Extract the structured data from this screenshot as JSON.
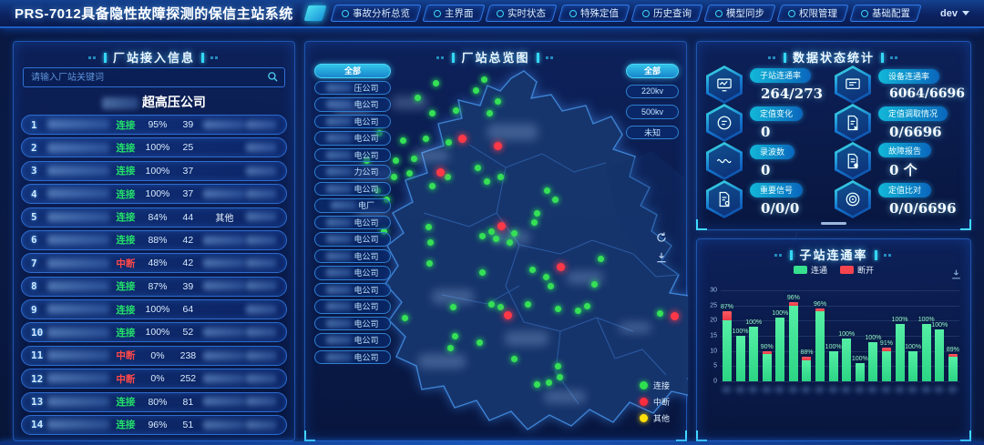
{
  "header": {
    "title": "PRS-7012具备隐性故障探测的保信主站系统",
    "tabs": [
      {
        "label": "事故分析总览",
        "icon": "home-icon"
      },
      {
        "label": "主界面",
        "icon": "home-icon"
      },
      {
        "label": "实时状态",
        "icon": "clock-icon"
      },
      {
        "label": "特殊定值",
        "icon": "gear-icon"
      },
      {
        "label": "历史查询",
        "icon": "search-icon"
      },
      {
        "label": "模型同步",
        "icon": "sync-icon"
      },
      {
        "label": "权限管理",
        "icon": "shield-icon"
      },
      {
        "label": "基础配置",
        "icon": "gear-icon"
      }
    ],
    "user": "dev"
  },
  "left_panel": {
    "title": "厂站接入信息",
    "search_placeholder": "请输入厂站关键词",
    "company_title_suffix": "超高压公司",
    "status_colors": {
      "connected": "#23e06b",
      "interrupted": "#ff4949"
    },
    "rows": [
      {
        "num": "1",
        "status": "连接",
        "pct": "95%",
        "count": "39",
        "extra": "",
        "mid_blur": true
      },
      {
        "num": "2",
        "status": "连接",
        "pct": "100%",
        "count": "25",
        "extra": "",
        "mid_blur": false
      },
      {
        "num": "3",
        "status": "连接",
        "pct": "100%",
        "count": "37",
        "extra": "",
        "mid_blur": false
      },
      {
        "num": "4",
        "status": "连接",
        "pct": "100%",
        "count": "37",
        "extra": "",
        "mid_blur": true
      },
      {
        "num": "5",
        "status": "连接",
        "pct": "84%",
        "count": "44",
        "extra": "其他",
        "mid_blur": false
      },
      {
        "num": "6",
        "status": "连接",
        "pct": "88%",
        "count": "42",
        "extra": "",
        "mid_blur": true
      },
      {
        "num": "7",
        "status": "中断",
        "pct": "48%",
        "count": "42",
        "extra": "",
        "mid_blur": true
      },
      {
        "num": "8",
        "status": "连接",
        "pct": "87%",
        "count": "39",
        "extra": "",
        "mid_blur": true
      },
      {
        "num": "9",
        "status": "连接",
        "pct": "100%",
        "count": "64",
        "extra": "",
        "mid_blur": false
      },
      {
        "num": "10",
        "status": "连接",
        "pct": "100%",
        "count": "52",
        "extra": "",
        "mid_blur": true
      },
      {
        "num": "11",
        "status": "中断",
        "pct": "0%",
        "count": "238",
        "extra": "",
        "mid_blur": true
      },
      {
        "num": "12",
        "status": "中断",
        "pct": "0%",
        "count": "252",
        "extra": "",
        "mid_blur": true
      },
      {
        "num": "13",
        "status": "连接",
        "pct": "80%",
        "count": "81",
        "extra": "",
        "mid_blur": true
      },
      {
        "num": "14",
        "status": "连接",
        "pct": "96%",
        "count": "51",
        "extra": "",
        "mid_blur": true
      }
    ]
  },
  "map_panel": {
    "title": "厂站总览图",
    "company_filters": [
      {
        "label": "全部",
        "active": true,
        "suffix": ""
      },
      {
        "label": "",
        "active": false,
        "suffix": "压公司"
      },
      {
        "label": "",
        "active": false,
        "suffix": "电公司"
      },
      {
        "label": "",
        "active": false,
        "suffix": "电公司"
      },
      {
        "label": "",
        "active": false,
        "suffix": "电公司"
      },
      {
        "label": "",
        "active": false,
        "suffix": "电公司"
      },
      {
        "label": "",
        "active": false,
        "suffix": "力公司"
      },
      {
        "label": "",
        "active": false,
        "suffix": "电公司"
      },
      {
        "label": "",
        "active": false,
        "suffix": "电厂"
      },
      {
        "label": "",
        "active": false,
        "suffix": "电公司"
      },
      {
        "label": "",
        "active": false,
        "suffix": "电公司"
      },
      {
        "label": "",
        "active": false,
        "suffix": "电公司"
      },
      {
        "label": "",
        "active": false,
        "suffix": "电公司"
      },
      {
        "label": "",
        "active": false,
        "suffix": "电公司"
      },
      {
        "label": "",
        "active": false,
        "suffix": "电公司"
      },
      {
        "label": "",
        "active": false,
        "suffix": "电公司"
      },
      {
        "label": "",
        "active": false,
        "suffix": "电公司"
      },
      {
        "label": "",
        "active": false,
        "suffix": "电公司"
      }
    ],
    "voltage_filters": [
      {
        "label": "全部",
        "active": true
      },
      {
        "label": "220kv",
        "active": false
      },
      {
        "label": "500kv",
        "active": false
      },
      {
        "label": "未知",
        "active": false
      }
    ],
    "legend": [
      {
        "label": "连接",
        "color": "#2ee04f"
      },
      {
        "label": "中断",
        "color": "#ff2e3e"
      },
      {
        "label": "其他",
        "color": "#ffe00a"
      }
    ],
    "dots": [
      [
        193,
        38,
        "g"
      ],
      [
        184,
        50,
        "g"
      ],
      [
        162,
        72,
        "g"
      ],
      [
        136,
        75,
        "g"
      ],
      [
        208,
        62,
        "g"
      ],
      [
        199,
        75,
        "g"
      ],
      [
        140,
        42,
        "g"
      ],
      [
        120,
        58,
        "g"
      ],
      [
        129,
        103,
        "g"
      ],
      [
        154,
        107,
        "g"
      ],
      [
        104,
        105,
        "g"
      ],
      [
        78,
        97,
        "g"
      ],
      [
        64,
        127,
        "g"
      ],
      [
        94,
        145,
        "g"
      ],
      [
        111,
        141,
        "g"
      ],
      [
        96,
        127,
        "g"
      ],
      [
        116,
        125,
        "g"
      ],
      [
        153,
        145,
        "g"
      ],
      [
        186,
        135,
        "g"
      ],
      [
        196,
        150,
        "g"
      ],
      [
        211,
        145,
        "g"
      ],
      [
        136,
        155,
        "g"
      ],
      [
        76,
        160,
        "g"
      ],
      [
        86,
        170,
        "g"
      ],
      [
        262,
        160,
        "g"
      ],
      [
        271,
        170,
        "g"
      ],
      [
        251,
        185,
        "g"
      ],
      [
        132,
        200,
        "g"
      ],
      [
        201,
        205,
        "g"
      ],
      [
        206,
        213,
        "g"
      ],
      [
        191,
        210,
        "g"
      ],
      [
        221,
        217,
        "g"
      ],
      [
        226,
        207,
        "g"
      ],
      [
        248,
        195,
        "g"
      ],
      [
        134,
        217,
        "g"
      ],
      [
        83,
        205,
        "g"
      ],
      [
        133,
        240,
        "g"
      ],
      [
        191,
        250,
        "g"
      ],
      [
        246,
        247,
        "g"
      ],
      [
        261,
        255,
        "g"
      ],
      [
        266,
        265,
        "g"
      ],
      [
        201,
        285,
        "g"
      ],
      [
        211,
        288,
        "g"
      ],
      [
        241,
        285,
        "g"
      ],
      [
        274,
        290,
        "g"
      ],
      [
        296,
        292,
        "g"
      ],
      [
        386,
        295,
        "g"
      ],
      [
        306,
        287,
        "g"
      ],
      [
        314,
        263,
        "g"
      ],
      [
        321,
        235,
        "g"
      ],
      [
        161,
        320,
        "g"
      ],
      [
        188,
        327,
        "g"
      ],
      [
        159,
        288,
        "g"
      ],
      [
        106,
        300,
        "g"
      ],
      [
        274,
        353,
        "g"
      ],
      [
        276,
        365,
        "g"
      ],
      [
        264,
        371,
        "g"
      ],
      [
        251,
        373,
        "g"
      ],
      [
        226,
        345,
        "g"
      ],
      [
        156,
        333,
        "g"
      ],
      [
        168,
        102,
        "r"
      ],
      [
        207,
        110,
        "r"
      ],
      [
        144,
        139,
        "r"
      ],
      [
        211,
        198,
        "r"
      ],
      [
        276,
        243,
        "r"
      ],
      [
        218,
        296,
        "r"
      ],
      [
        401,
        297,
        "r"
      ]
    ],
    "blur_patches": [
      [
        31,
        65,
        42,
        16
      ],
      [
        95,
        60,
        40,
        14
      ],
      [
        200,
        90,
        55,
        18
      ],
      [
        118,
        118,
        40,
        14
      ],
      [
        52,
        138,
        46,
        14
      ],
      [
        56,
        183,
        36,
        12
      ],
      [
        205,
        208,
        42,
        14
      ],
      [
        139,
        272,
        46,
        16
      ],
      [
        287,
        252,
        40,
        14
      ],
      [
        219,
        318,
        48,
        16
      ],
      [
        124,
        343,
        52,
        16
      ],
      [
        262,
        383,
        46,
        14
      ],
      [
        344,
        308,
        36,
        12
      ]
    ]
  },
  "stats_panel": {
    "title": "数据状态统计",
    "items": [
      {
        "icon": "monitor-wave-icon",
        "label": "子站连通率",
        "value": "264/273"
      },
      {
        "icon": "monitor-icon",
        "label": "设备连通率",
        "value": "6064/6696"
      },
      {
        "icon": "value-circle-icon",
        "label": "定值变化",
        "value": "0"
      },
      {
        "icon": "doc-fetch-icon",
        "label": "定值调取情况",
        "value": "0/6696"
      },
      {
        "icon": "wave-icon",
        "label": "录波数",
        "value": "0"
      },
      {
        "icon": "report-icon",
        "label": "故障报告",
        "value": "0 个"
      },
      {
        "icon": "signal-doc-icon",
        "label": "重要信号",
        "value": "0/0/0"
      },
      {
        "icon": "target-icon",
        "label": "定值比对",
        "value": "0/0/6696"
      }
    ]
  },
  "chart_panel": {
    "title": "子站连通率",
    "legend": [
      {
        "label": "连通",
        "color": "#36e08e"
      },
      {
        "label": "断开",
        "color": "#f4454e"
      }
    ],
    "chart_data": {
      "type": "bar",
      "stacked": true,
      "ylim": [
        0,
        30
      ],
      "yticks": [
        0,
        5,
        10,
        15,
        20,
        25,
        30
      ],
      "series": [
        {
          "name": "连通",
          "color": "#36e08e",
          "values": [
            20,
            15,
            18,
            9,
            21,
            25,
            7,
            23,
            10,
            14,
            6,
            13,
            10,
            19,
            10,
            19,
            17,
            8
          ]
        },
        {
          "name": "断开",
          "color": "#f4454e",
          "values": [
            3,
            0,
            0,
            1,
            0,
            1,
            1,
            1,
            0,
            0,
            0,
            0,
            1,
            0,
            0,
            0,
            0,
            1
          ]
        }
      ],
      "bar_labels": [
        "87%",
        "100%",
        "100%",
        "90%",
        "100%",
        "96%",
        "88%",
        "96%",
        "100%",
        "100%",
        "100%",
        "100%",
        "91%",
        "100%",
        "100%",
        "100%",
        "100%",
        "89%"
      ],
      "x_labels_blurred": true,
      "legend_position": "top"
    }
  }
}
